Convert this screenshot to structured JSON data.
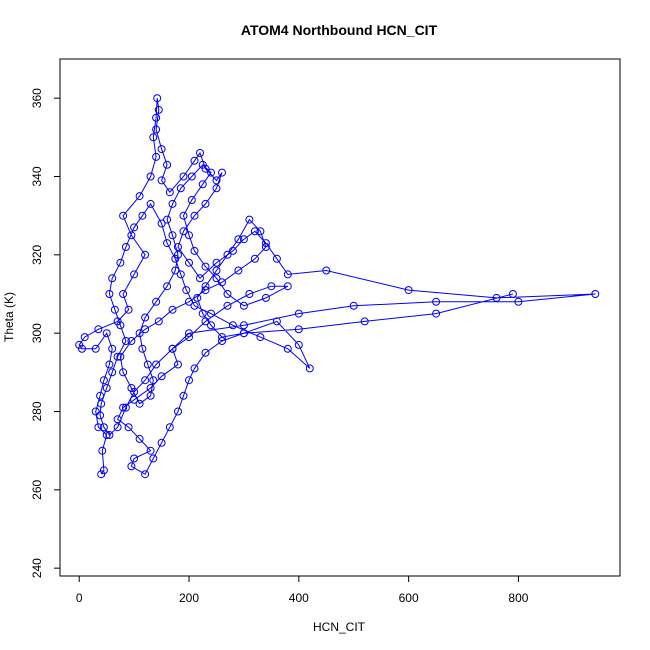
{
  "chart_data": {
    "type": "line",
    "title": "ATOM4 Northbound HCN_CIT",
    "xlabel": "HCN_CIT",
    "ylabel": "Theta (K)",
    "xlim": [
      -35,
      985
    ],
    "ylim": [
      238,
      370
    ],
    "xticks": [
      0,
      200,
      400,
      600,
      800
    ],
    "yticks": [
      240,
      260,
      280,
      300,
      320,
      340,
      360
    ],
    "grid": false,
    "legend": "none",
    "marker": "open-circle",
    "color": "#0000ff",
    "series": [
      {
        "values": [
          [
            40,
            264
          ],
          [
            45,
            265
          ],
          [
            42,
            270
          ],
          [
            50,
            274
          ],
          [
            35,
            276
          ],
          [
            30,
            280
          ],
          [
            38,
            284
          ],
          [
            45,
            288
          ],
          [
            55,
            292
          ],
          [
            60,
            296
          ],
          [
            50,
            300
          ],
          [
            30,
            296
          ],
          [
            5,
            296
          ],
          [
            0,
            297
          ],
          [
            10,
            299
          ],
          [
            35,
            301
          ],
          [
            70,
            303
          ],
          [
            90,
            306
          ],
          [
            80,
            310
          ],
          [
            100,
            315
          ],
          [
            120,
            320
          ],
          [
            95,
            325
          ],
          [
            80,
            330
          ],
          [
            110,
            335
          ],
          [
            130,
            340
          ],
          [
            140,
            345
          ],
          [
            135,
            350
          ],
          [
            140,
            355
          ],
          [
            142,
            360
          ],
          [
            145,
            357
          ],
          [
            140,
            352
          ],
          [
            150,
            347
          ],
          [
            160,
            343
          ],
          [
            150,
            339
          ],
          [
            165,
            336
          ],
          [
            190,
            340
          ],
          [
            210,
            344
          ],
          [
            220,
            346
          ],
          [
            230,
            342
          ],
          [
            250,
            339
          ],
          [
            260,
            341
          ],
          [
            250,
            337
          ],
          [
            230,
            333
          ],
          [
            210,
            330
          ],
          [
            190,
            326
          ],
          [
            180,
            322
          ],
          [
            200,
            318
          ],
          [
            220,
            314
          ],
          [
            250,
            318
          ],
          [
            280,
            321
          ],
          [
            300,
            324
          ],
          [
            320,
            326
          ],
          [
            340,
            323
          ],
          [
            360,
            319
          ],
          [
            380,
            315
          ],
          [
            450,
            316
          ],
          [
            600,
            311
          ],
          [
            760,
            309
          ],
          [
            940,
            310
          ],
          [
            800,
            308
          ],
          [
            650,
            308
          ],
          [
            500,
            307
          ],
          [
            400,
            305
          ],
          [
            300,
            302
          ],
          [
            200,
            300
          ],
          [
            170,
            296
          ],
          [
            180,
            292
          ],
          [
            150,
            289
          ],
          [
            130,
            286
          ],
          [
            100,
            283
          ],
          [
            80,
            281
          ],
          [
            70,
            278
          ],
          [
            90,
            276
          ],
          [
            110,
            273
          ],
          [
            130,
            270
          ],
          [
            100,
            268
          ],
          [
            95,
            266
          ],
          [
            120,
            264
          ],
          [
            135,
            268
          ],
          [
            150,
            272
          ],
          [
            165,
            276
          ],
          [
            180,
            280
          ],
          [
            190,
            284
          ],
          [
            200,
            288
          ],
          [
            210,
            291
          ],
          [
            230,
            295
          ],
          [
            260,
            298
          ],
          [
            300,
            300
          ],
          [
            360,
            303
          ],
          [
            400,
            297
          ],
          [
            420,
            291
          ],
          [
            380,
            296
          ],
          [
            330,
            299
          ],
          [
            280,
            302
          ],
          [
            240,
            305
          ],
          [
            210,
            307
          ],
          [
            195,
            311
          ],
          [
            185,
            315
          ],
          [
            175,
            319
          ],
          [
            160,
            323
          ],
          [
            150,
            328
          ],
          [
            130,
            333
          ],
          [
            115,
            330
          ],
          [
            100,
            327
          ],
          [
            85,
            322
          ],
          [
            75,
            318
          ],
          [
            60,
            314
          ],
          [
            55,
            310
          ],
          [
            65,
            306
          ],
          [
            75,
            302
          ],
          [
            85,
            298
          ],
          [
            70,
            294
          ],
          [
            60,
            290
          ],
          [
            50,
            286
          ],
          [
            40,
            282
          ],
          [
            38,
            279
          ],
          [
            45,
            276
          ],
          [
            55,
            274
          ],
          [
            70,
            276
          ],
          [
            85,
            281
          ],
          [
            100,
            285
          ],
          [
            120,
            288
          ],
          [
            140,
            292
          ],
          [
            170,
            296
          ],
          [
            200,
            299
          ],
          [
            230,
            303
          ],
          [
            270,
            307
          ],
          [
            310,
            310
          ],
          [
            350,
            312
          ],
          [
            380,
            312
          ],
          [
            340,
            309
          ],
          [
            300,
            307
          ],
          [
            270,
            310
          ],
          [
            250,
            314
          ],
          [
            230,
            317
          ],
          [
            210,
            321
          ],
          [
            200,
            325
          ],
          [
            190,
            330
          ],
          [
            205,
            334
          ],
          [
            225,
            338
          ],
          [
            240,
            341
          ],
          [
            225,
            343
          ],
          [
            205,
            340
          ],
          [
            185,
            337
          ],
          [
            170,
            333
          ],
          [
            160,
            329
          ],
          [
            170,
            325
          ],
          [
            180,
            320
          ],
          [
            175,
            316
          ],
          [
            160,
            312
          ],
          [
            140,
            308
          ],
          [
            120,
            304
          ],
          [
            110,
            300
          ],
          [
            115,
            296
          ],
          [
            125,
            292
          ],
          [
            135,
            288
          ],
          [
            130,
            284
          ],
          [
            110,
            282
          ],
          [
            95,
            286
          ],
          [
            80,
            290
          ],
          [
            75,
            294
          ],
          [
            95,
            298
          ],
          [
            120,
            301
          ],
          [
            145,
            303
          ],
          [
            170,
            306
          ],
          [
            200,
            308
          ],
          [
            230,
            311
          ],
          [
            260,
            313
          ],
          [
            290,
            316
          ],
          [
            320,
            319
          ],
          [
            340,
            322
          ],
          [
            330,
            326
          ],
          [
            310,
            329
          ],
          [
            290,
            324
          ],
          [
            270,
            320
          ],
          [
            250,
            316
          ],
          [
            230,
            312
          ],
          [
            215,
            309
          ],
          [
            225,
            305
          ],
          [
            240,
            302
          ],
          [
            260,
            299
          ],
          [
            300,
            300
          ],
          [
            400,
            301
          ],
          [
            520,
            303
          ],
          [
            650,
            305
          ],
          [
            790,
            310
          ]
        ]
      }
    ]
  }
}
